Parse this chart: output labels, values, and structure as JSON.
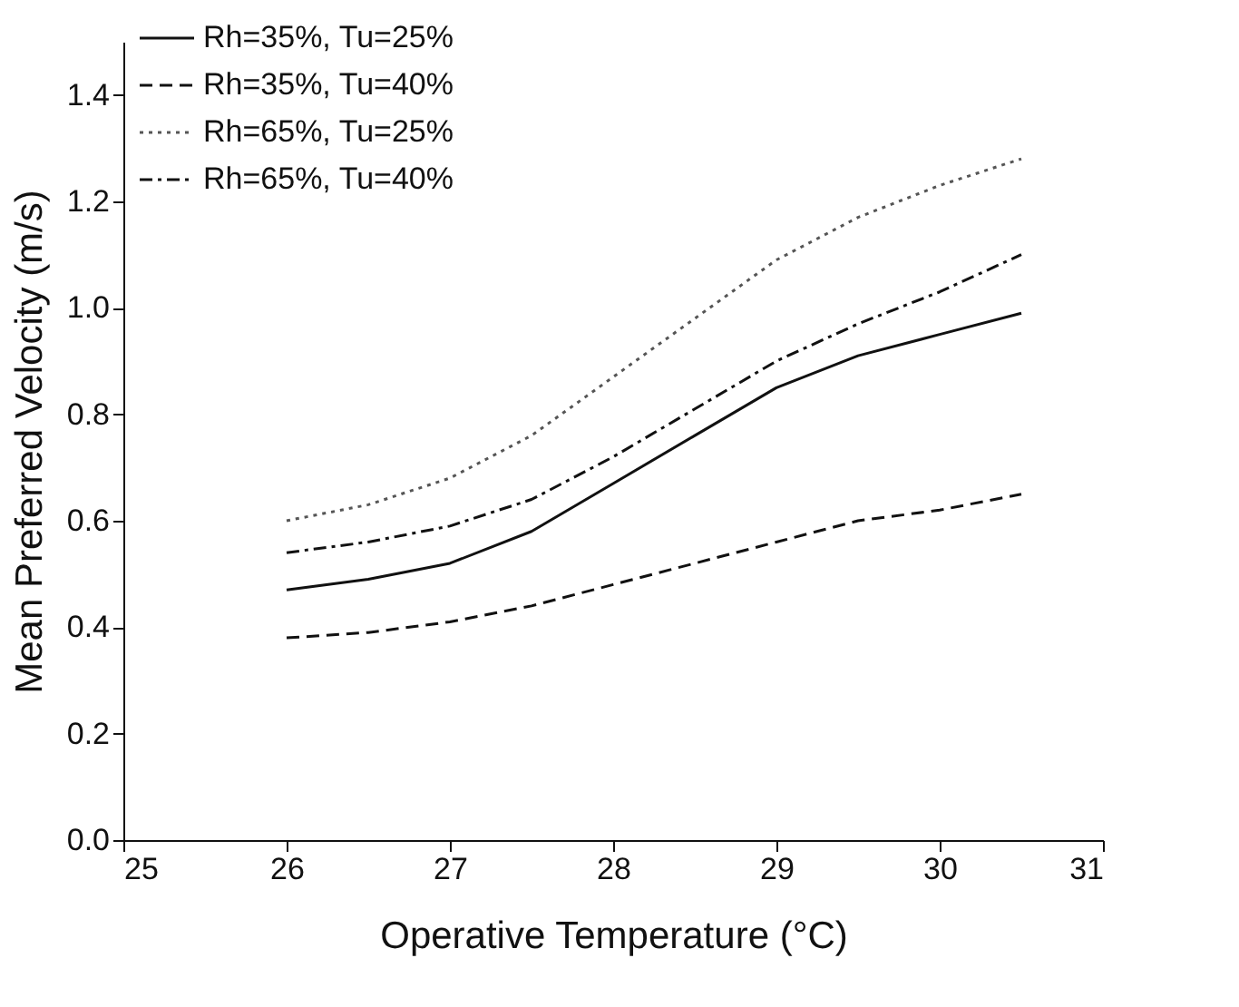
{
  "chart_data": {
    "type": "line",
    "xlabel": "Operative Temperature (°C)",
    "ylabel": "Mean Preferred Velocity (m/s)",
    "x": [
      26,
      26.5,
      27,
      27.5,
      28,
      28.5,
      29,
      29.5,
      30,
      30.5
    ],
    "series": [
      {
        "name": "Rh=35%, Tu=25%",
        "color": "#111111",
        "line_style": "solid",
        "values": [
          0.47,
          0.49,
          0.52,
          0.58,
          0.67,
          0.76,
          0.85,
          0.91,
          0.95,
          0.99
        ]
      },
      {
        "name": "Rh=35%, Tu=40%",
        "color": "#111111",
        "line_style": "dashed",
        "values": [
          0.38,
          0.39,
          0.41,
          0.44,
          0.48,
          0.52,
          0.56,
          0.6,
          0.62,
          0.65
        ]
      },
      {
        "name": "Rh=65%, Tu=25%",
        "color": "#555555",
        "line_style": "dotted",
        "values": [
          0.6,
          0.63,
          0.68,
          0.76,
          0.87,
          0.98,
          1.09,
          1.17,
          1.23,
          1.28
        ]
      },
      {
        "name": "Rh=65%, Tu=40%",
        "color": "#111111",
        "line_style": "dashdot",
        "values": [
          0.54,
          0.56,
          0.59,
          0.64,
          0.72,
          0.81,
          0.9,
          0.97,
          1.03,
          1.1
        ]
      }
    ],
    "xlim": [
      25,
      31
    ],
    "xticks": [
      25,
      26,
      27,
      28,
      29,
      30,
      31
    ],
    "ylim": [
      0,
      1.5
    ],
    "yticks": [
      {
        "value": 0,
        "label": "0.0"
      },
      0.2,
      0.4,
      0.6,
      0.8,
      {
        "value": 1,
        "label": "1.0"
      },
      1.2,
      1.4
    ],
    "grid": false,
    "legend": "top left",
    "marker": "none"
  }
}
